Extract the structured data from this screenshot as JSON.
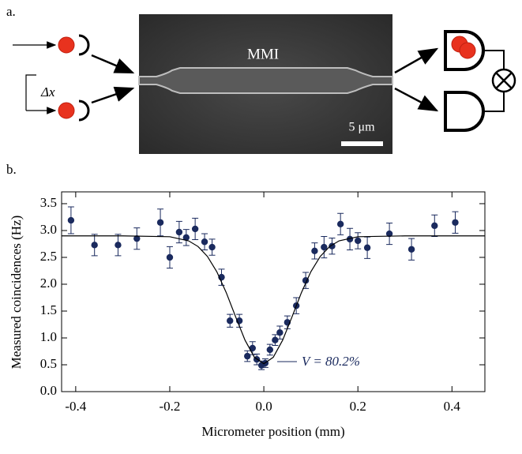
{
  "panel_labels": [
    "a.",
    "b."
  ],
  "diagram": {
    "mmi_label": "MMI",
    "scale_bar": "5 μm",
    "delta_x": "Δx"
  },
  "chart_data": {
    "type": "scatter",
    "xlabel": "Micrometer position (mm)",
    "ylabel": "Measured coincidences (Hz)",
    "annotation": "V = 80.2%",
    "xlim": [
      -0.43,
      0.47
    ],
    "ylim": [
      0,
      3.72
    ],
    "xticks": [
      -0.4,
      -0.2,
      {
        "value": 0,
        "label": "0.0"
      },
      0.2,
      0.4
    ],
    "yticks": [
      {
        "value": 0,
        "label": "0.0"
      },
      0.5,
      {
        "value": 1,
        "label": "1.0"
      },
      1.5,
      {
        "value": 2,
        "label": "2.0"
      },
      2.5,
      {
        "value": 3,
        "label": "3.0"
      },
      3.5
    ],
    "series": [
      {
        "color": "#1a2a5e",
        "x": [
          -0.41,
          -0.36,
          -0.31,
          -0.27,
          -0.22,
          -0.2,
          -0.18,
          -0.165,
          -0.146,
          -0.126,
          -0.11,
          -0.09,
          -0.072,
          -0.052,
          -0.035,
          -0.024,
          -0.015,
          -0.005,
          0.003,
          0.013,
          0.024,
          0.034,
          0.05,
          0.069,
          0.089,
          0.108,
          0.128,
          0.145,
          0.163,
          0.183,
          0.2,
          0.22,
          0.267,
          0.314,
          0.363,
          0.407
        ],
        "values": [
          3.19,
          2.73,
          2.73,
          2.85,
          3.15,
          2.5,
          2.97,
          2.87,
          3.03,
          2.79,
          2.69,
          2.13,
          1.32,
          1.32,
          0.66,
          0.81,
          0.6,
          0.49,
          0.53,
          0.78,
          0.96,
          1.1,
          1.29,
          1.6,
          2.07,
          2.62,
          2.69,
          2.71,
          3.12,
          2.84,
          2.81,
          2.68,
          2.94,
          2.65,
          3.09,
          3.15
        ],
        "errors": [
          0.25,
          0.2,
          0.2,
          0.2,
          0.25,
          0.2,
          0.2,
          0.15,
          0.2,
          0.15,
          0.15,
          0.15,
          0.12,
          0.12,
          0.1,
          0.12,
          0.1,
          0.08,
          0.08,
          0.1,
          0.1,
          0.12,
          0.12,
          0.15,
          0.15,
          0.15,
          0.2,
          0.15,
          0.2,
          0.2,
          0.15,
          0.2,
          0.2,
          0.2,
          0.2,
          0.2
        ]
      },
      {
        "type": "line",
        "color": "#000000",
        "x": [
          -0.43,
          -0.3,
          -0.2,
          -0.16,
          -0.14,
          -0.12,
          -0.1,
          -0.08,
          -0.06,
          -0.04,
          -0.02,
          0,
          0.02,
          0.04,
          0.06,
          0.08,
          0.1,
          0.12,
          0.14,
          0.16,
          0.2,
          0.3,
          0.47
        ],
        "values": [
          2.9,
          2.9,
          2.885,
          2.808,
          2.703,
          2.519,
          2.233,
          1.846,
          1.394,
          0.958,
          0.639,
          0.52,
          0.639,
          0.958,
          1.394,
          1.846,
          2.233,
          2.519,
          2.703,
          2.808,
          2.885,
          2.9,
          2.9
        ]
      }
    ]
  }
}
